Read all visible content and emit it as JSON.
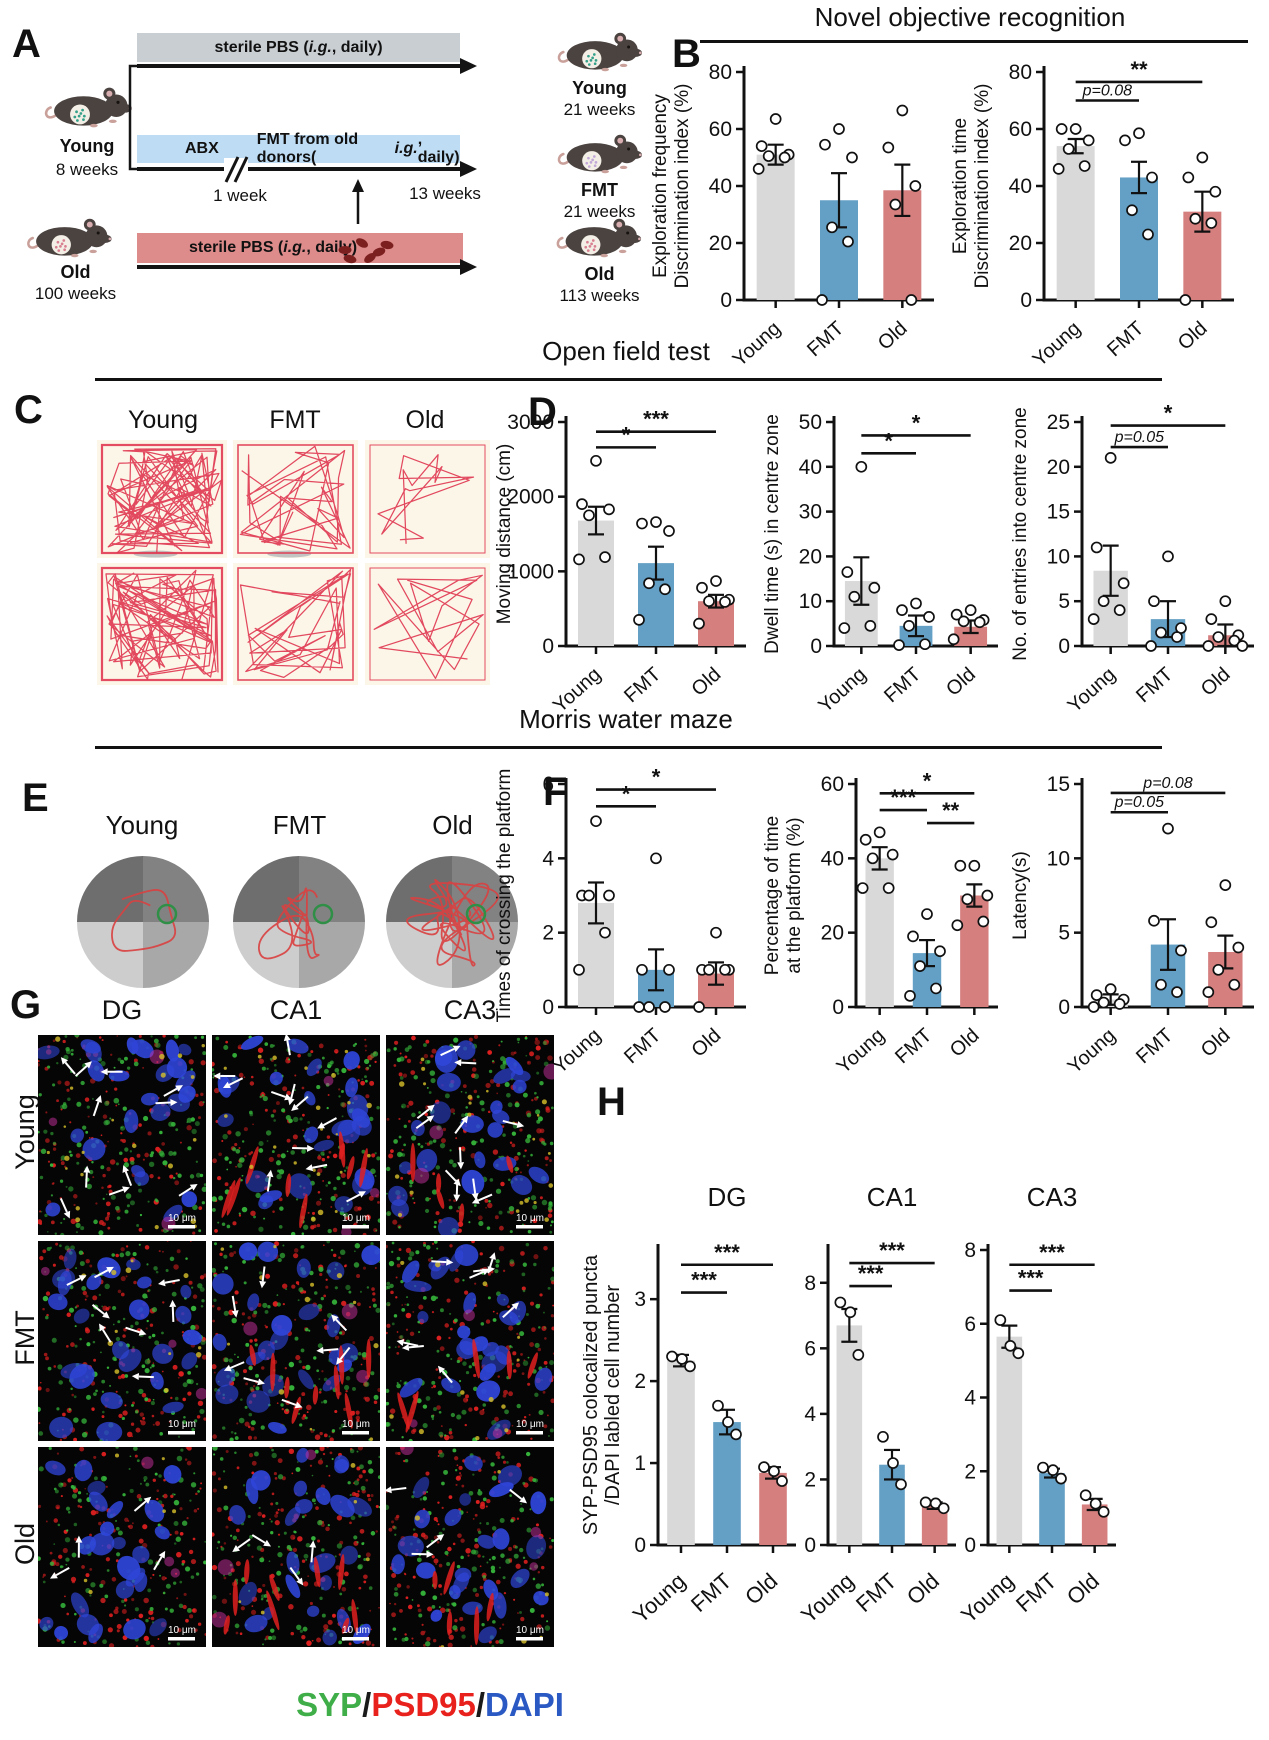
{
  "figure": {
    "panels": {
      "a": "A",
      "b": "B",
      "c": "C",
      "d": "D",
      "e": "E",
      "f": "F",
      "g": "G",
      "h": "H"
    },
    "section_titles": {
      "novel_object": "Novel objective recognition",
      "open_field": "Open field test",
      "water_maze": "Morris water maze"
    }
  },
  "palette": {
    "timeline_young": "#c9ced3",
    "timeline_fmt": "#bedcf4",
    "timeline_old": "#dd8b8b",
    "track_red": "#e03a52",
    "platform_green": "#2f8f46"
  },
  "bar_colors": [
    "#d9d9d9",
    "#64a0c5",
    "#d57f7f"
  ],
  "panel_a": {
    "bar1": {
      "pre": "sterile PBS (",
      "ig": "i.g.",
      "post": ", daily)"
    },
    "bar2": {
      "abx": "ABX",
      "pre": "FMT  from old donors(",
      "ig": "i.g.",
      "post": ", daily)"
    },
    "bar3": {
      "pre": "sterile PBS (",
      "ig": "i.g.",
      "post": ", daily)"
    },
    "marks": {
      "week1": "1 week",
      "weeks13": "13 weeks"
    },
    "mice": {
      "young_left": {
        "name": "Young",
        "age": "8 weeks"
      },
      "old_left": {
        "name": "Old",
        "age": "100 weeks"
      },
      "young_right": {
        "name": "Young",
        "age": "21 weeks"
      },
      "fmt_right": {
        "name": "FMT",
        "age": "21 weeks"
      },
      "old_right": {
        "name": "Old",
        "age": "113 weeks"
      }
    }
  },
  "panel_c": {
    "columns": [
      "Young",
      "FMT",
      "Old"
    ]
  },
  "panel_e": {
    "columns": [
      "Young",
      "FMT",
      "Old"
    ]
  },
  "panel_g": {
    "columns": [
      "DG",
      "CA1",
      "CA3"
    ],
    "rows": [
      "Young",
      "FMT",
      "Old"
    ],
    "scale_bar": "10 μm"
  },
  "panel_h": {
    "columns": [
      "DG",
      "CA1",
      "CA3"
    ],
    "ylabel_lines": [
      "SYP-PSD95 colocalized puncta",
      "/DAPI labled cell number"
    ]
  },
  "legend": {
    "items": [
      {
        "text": "SYP",
        "color": "#3fae49"
      },
      {
        "text": "/",
        "color": "#1a1a1a"
      },
      {
        "text": "PSD95",
        "color": "#e8211d"
      },
      {
        "text": "/",
        "color": "#1a1a1a"
      },
      {
        "text": "DAPI",
        "color": "#2b59c3"
      }
    ]
  },
  "chart_data": [
    {
      "id": "b1",
      "type": "bar",
      "panel": "B",
      "ylabel_lines": [
        "Exploration frequency",
        "Discrimination index (%)"
      ],
      "ylim": [
        0,
        80
      ],
      "yticks": [
        0,
        20,
        40,
        60,
        80
      ],
      "categories": [
        "Young",
        "FMT",
        "Old"
      ],
      "values": [
        51,
        35,
        38.5
      ],
      "errors": [
        3.5,
        9.5,
        9
      ],
      "points": [
        [
          63.5,
          54,
          51,
          50.5,
          50,
          46
        ],
        [
          60,
          54.5,
          50,
          25.5,
          20.5,
          0
        ],
        [
          66.5,
          53.5,
          40,
          33.5,
          0
        ]
      ],
      "sig": []
    },
    {
      "id": "b2",
      "type": "bar",
      "panel": "B",
      "ylabel_lines": [
        "Exploration time",
        "Discrimination index (%)"
      ],
      "ylim": [
        0,
        80
      ],
      "yticks": [
        0,
        20,
        40,
        60,
        80
      ],
      "categories": [
        "Young",
        "FMT",
        "Old"
      ],
      "values": [
        54,
        43,
        31
      ],
      "errors": [
        2.5,
        5.5,
        7
      ],
      "points": [
        [
          60,
          60,
          56,
          53,
          47,
          46
        ],
        [
          58.5,
          56,
          43,
          31.5,
          23
        ],
        [
          50,
          43,
          38,
          28.5,
          27,
          0
        ]
      ],
      "sig": [
        {
          "from": 0,
          "to": 2,
          "label": "**",
          "y": 76.5
        },
        {
          "from": 0,
          "to": 1,
          "label": "p=0.08",
          "y": 70,
          "italic": true
        }
      ]
    },
    {
      "id": "d1",
      "type": "bar",
      "panel": "D",
      "ylabel_lines": [
        "Moving distance (cm)"
      ],
      "ylim": [
        0,
        3000
      ],
      "yticks": [
        0,
        1000,
        2000,
        3000
      ],
      "categories": [
        "Young",
        "FMT",
        "Old"
      ],
      "values": [
        1680,
        1110,
        600
      ],
      "errors": [
        185,
        220,
        85
      ],
      "points": [
        [
          2480,
          1900,
          1830,
          1750,
          1190,
          1160
        ],
        [
          1660,
          1640,
          1540,
          840,
          760,
          350
        ],
        [
          870,
          780,
          620,
          600,
          590,
          300
        ]
      ],
      "sig": [
        {
          "from": 0,
          "to": 2,
          "label": "***",
          "y": 2870
        },
        {
          "from": 0,
          "to": 1,
          "label": "*",
          "y": 2660
        }
      ]
    },
    {
      "id": "d2",
      "type": "bar",
      "panel": "D",
      "ylabel_lines": [
        "Dwell time (s) in centre zone"
      ],
      "ylim": [
        0,
        50
      ],
      "yticks": [
        0,
        10,
        20,
        30,
        40,
        50
      ],
      "categories": [
        "Young",
        "FMT",
        "Old"
      ],
      "values": [
        14.5,
        4.5,
        4.3
      ],
      "errors": [
        5.3,
        2.3,
        1.4
      ],
      "points": [
        [
          40,
          16.5,
          13,
          11,
          4.5,
          4
        ],
        [
          9.5,
          8,
          6.5,
          4.5,
          0.4,
          0.2
        ],
        [
          8,
          7,
          5.8,
          5.5,
          5.3,
          1.5
        ]
      ],
      "sig": [
        {
          "from": 0,
          "to": 2,
          "label": "*",
          "y": 47
        },
        {
          "from": 0,
          "to": 1,
          "label": "*",
          "y": 43
        }
      ]
    },
    {
      "id": "d3",
      "type": "bar",
      "panel": "D",
      "ylabel_lines": [
        "No. of entries into centre zone"
      ],
      "ylim": [
        0,
        25
      ],
      "yticks": [
        0,
        5,
        10,
        15,
        20,
        25
      ],
      "categories": [
        "Young",
        "FMT",
        "Old"
      ],
      "values": [
        8.4,
        3,
        1.2
      ],
      "errors": [
        2.8,
        2,
        1.2
      ],
      "points": [
        [
          21,
          11,
          7,
          5,
          4,
          3
        ],
        [
          10,
          5,
          2,
          1.5,
          1,
          0
        ],
        [
          5,
          3,
          1.2,
          1,
          0.6,
          0,
          0
        ]
      ],
      "sig": [
        {
          "from": 0,
          "to": 2,
          "label": "*",
          "y": 24.6
        },
        {
          "from": 0,
          "to": 1,
          "label": "p=0.05",
          "y": 22.2,
          "italic": true
        }
      ]
    },
    {
      "id": "f1",
      "type": "bar",
      "panel": "F",
      "ylabel_lines": [
        "Times of crossing the platform"
      ],
      "ylim": [
        0,
        6
      ],
      "yticks": [
        0,
        2,
        4,
        6
      ],
      "categories": [
        "Young",
        "FMT",
        "Old"
      ],
      "values": [
        2.8,
        1,
        0.9
      ],
      "errors": [
        0.55,
        0.55,
        0.3
      ],
      "points": [
        [
          5,
          3,
          3,
          3,
          2,
          1
        ],
        [
          4,
          1,
          1,
          0,
          0,
          0
        ],
        [
          2,
          1,
          1,
          1,
          1,
          0
        ]
      ],
      "sig": [
        {
          "from": 0,
          "to": 2,
          "label": "*",
          "y": 5.85
        },
        {
          "from": 0,
          "to": 1,
          "label": "*",
          "y": 5.4
        }
      ]
    },
    {
      "id": "f2",
      "type": "bar",
      "panel": "F",
      "ylabel_lines": [
        "Percentage of time",
        "at the platform (%)"
      ],
      "ylim": [
        0,
        60
      ],
      "yticks": [
        0,
        20,
        40,
        60
      ],
      "categories": [
        "Young",
        "FMT",
        "Old"
      ],
      "values": [
        40,
        14.5,
        30
      ],
      "errors": [
        3,
        3.5,
        3
      ],
      "points": [
        [
          47,
          45,
          41,
          40,
          32,
          32
        ],
        [
          25,
          19,
          15,
          11,
          5,
          3
        ],
        [
          38,
          38,
          30,
          29,
          23,
          22
        ]
      ],
      "sig": [
        {
          "from": 0,
          "to": 2,
          "label": "*",
          "y": 57.5
        },
        {
          "from": 0,
          "to": 1,
          "label": "***",
          "y": 53
        },
        {
          "from": 1,
          "to": 2,
          "label": "**",
          "y": 49.5
        }
      ]
    },
    {
      "id": "f3",
      "type": "bar",
      "panel": "F",
      "ylabel_lines": [
        "Latency(s)"
      ],
      "ylim": [
        0,
        15
      ],
      "yticks": [
        0,
        5,
        10,
        15
      ],
      "categories": [
        "Young",
        "FMT",
        "Old"
      ],
      "values": [
        0.5,
        4.2,
        3.7
      ],
      "errors": [
        0.35,
        1.7,
        1.1
      ],
      "points": [
        [
          1.2,
          0.8,
          0.5,
          0.3,
          0.2,
          0
        ],
        [
          12,
          5.8,
          3.8,
          1.5,
          1
        ],
        [
          8.2,
          5.7,
          4,
          2.5,
          1.5,
          1
        ]
      ],
      "sig": [
        {
          "from": 0,
          "to": 2,
          "label": "p=0.08",
          "y": 14.4,
          "italic": true
        },
        {
          "from": 0,
          "to": 1,
          "label": "p=0.05",
          "y": 13.1,
          "italic": true
        }
      ]
    },
    {
      "id": "h_dg",
      "type": "bar",
      "panel": "H",
      "title": "DG",
      "ylabel_lines": [],
      "ylim": [
        0,
        3.6
      ],
      "yticks": [
        0,
        1,
        2,
        3
      ],
      "categories": [
        "Young",
        "FMT",
        "Old"
      ],
      "values": [
        2.25,
        1.5,
        0.88
      ],
      "errors": [
        0.07,
        0.15,
        0.07
      ],
      "points": [
        [
          2.3,
          2.27,
          2.18
        ],
        [
          1.7,
          1.5,
          1.35
        ],
        [
          0.95,
          0.9,
          0.78
        ]
      ],
      "sig": [
        {
          "from": 0,
          "to": 2,
          "label": "***",
          "y": 3.42
        },
        {
          "from": 0,
          "to": 1,
          "label": "***",
          "y": 3.08
        }
      ]
    },
    {
      "id": "h_ca1",
      "type": "bar",
      "panel": "H",
      "title": "CA1",
      "ylabel_lines": [],
      "ylim": [
        0,
        9
      ],
      "yticks": [
        0,
        2,
        4,
        6,
        8
      ],
      "categories": [
        "Young",
        "FMT",
        "Old"
      ],
      "values": [
        6.7,
        2.45,
        1.2
      ],
      "errors": [
        0.5,
        0.45,
        0.1
      ],
      "points": [
        [
          7.4,
          7.1,
          5.8
        ],
        [
          3.3,
          2.5,
          1.85
        ],
        [
          1.3,
          1.27,
          1.12
        ]
      ],
      "sig": [
        {
          "from": 0,
          "to": 2,
          "label": "***",
          "y": 8.6
        },
        {
          "from": 0,
          "to": 1,
          "label": "***",
          "y": 7.9
        }
      ]
    },
    {
      "id": "h_ca3",
      "type": "bar",
      "panel": "H",
      "title": "CA3",
      "ylabel_lines": [],
      "ylim": [
        0,
        8
      ],
      "yticks": [
        0,
        2,
        4,
        6,
        8
      ],
      "categories": [
        "Young",
        "FMT",
        "Old"
      ],
      "values": [
        5.65,
        1.95,
        1.1
      ],
      "errors": [
        0.3,
        0.12,
        0.15
      ],
      "points": [
        [
          6.1,
          5.4,
          5.2
        ],
        [
          2.1,
          2.03,
          1.8
        ],
        [
          1.35,
          1.12,
          0.9
        ]
      ],
      "sig": [
        {
          "from": 0,
          "to": 2,
          "label": "***",
          "y": 7.6
        },
        {
          "from": 0,
          "to": 1,
          "label": "***",
          "y": 6.9
        }
      ]
    }
  ]
}
